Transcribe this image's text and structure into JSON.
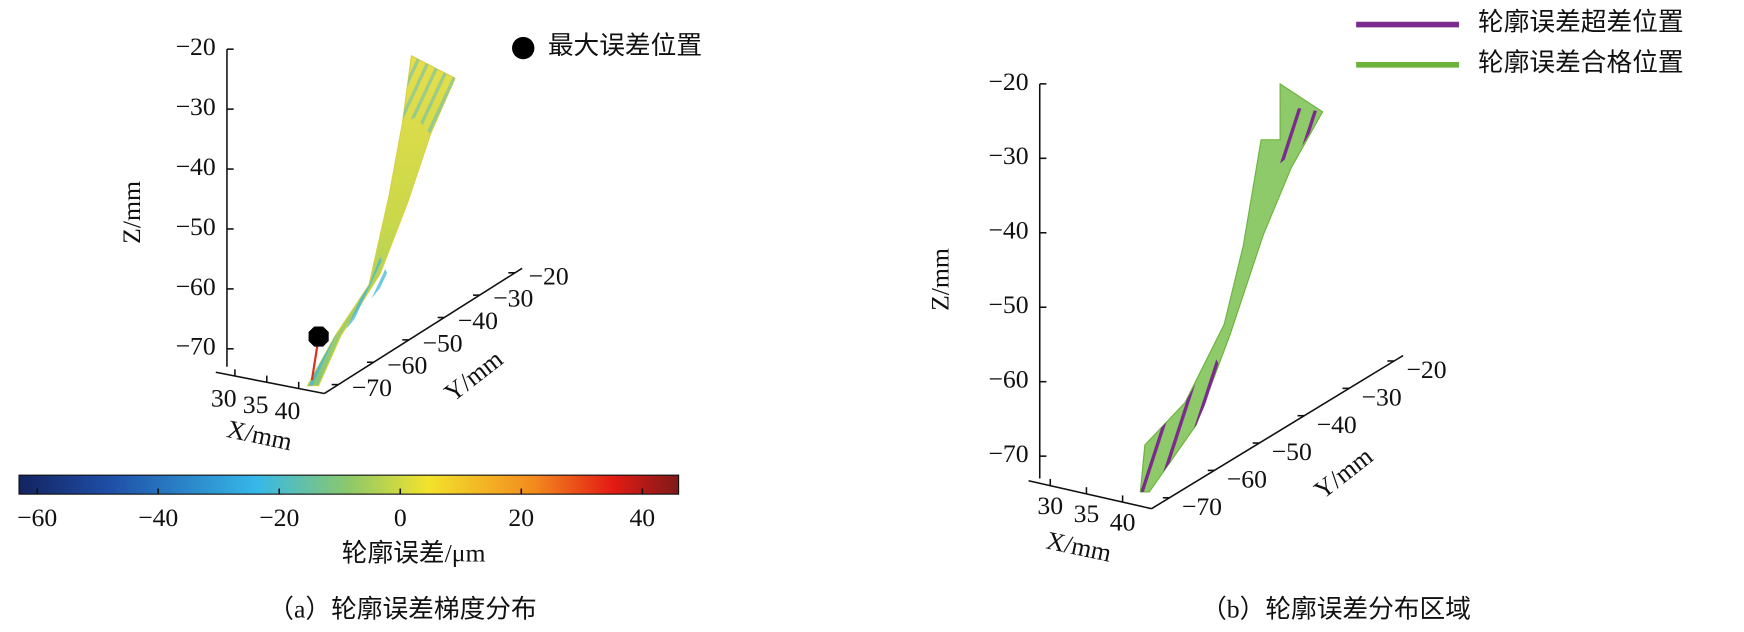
{
  "chart_data": [
    {
      "type": "surface3d",
      "zlabel": "Z/mm",
      "xlabel": "X/mm",
      "ylabel": "Y/mm",
      "zlim": [
        -73,
        -20
      ],
      "zticks": [
        {
          "value": -20,
          "label": "−20"
        },
        {
          "value": -30,
          "label": "−30"
        },
        {
          "value": -40,
          "label": "−40"
        },
        {
          "value": -50,
          "label": "−50"
        },
        {
          "value": -60,
          "label": "−60"
        },
        {
          "value": -70,
          "label": "−70"
        }
      ],
      "xlim": [
        27,
        44
      ],
      "xticks": [
        30,
        35,
        40
      ],
      "ylim": [
        -74,
        -18
      ],
      "yticks": [
        {
          "value": -20,
          "label": "−20"
        },
        {
          "value": -30,
          "label": "−30"
        },
        {
          "value": -40,
          "label": "−40"
        },
        {
          "value": -50,
          "label": "−50"
        },
        {
          "value": -60,
          "label": "−60"
        },
        {
          "value": -70,
          "label": "−70"
        }
      ],
      "markers": [
        {
          "name": "最大误差位置",
          "color": "#000000"
        }
      ],
      "colorbar": {
        "label": "轮廓误差/μm",
        "clim": [
          -63,
          46
        ],
        "ticks": [
          {
            "value": -60,
            "label": "−60"
          },
          {
            "value": -40,
            "label": "−40"
          },
          {
            "value": -20,
            "label": "−20"
          },
          0,
          20,
          40
        ]
      },
      "caption": "（a）轮廓误差梯度分布"
    },
    {
      "type": "surface3d",
      "zlabel": "Z/mm",
      "xlabel": "X/mm",
      "ylabel": "Y/mm",
      "zlim": [
        -73,
        -20
      ],
      "zticks": [
        {
          "value": -20,
          "label": "−20"
        },
        {
          "value": -30,
          "label": "−30"
        },
        {
          "value": -40,
          "label": "−40"
        },
        {
          "value": -50,
          "label": "−50"
        },
        {
          "value": -60,
          "label": "−60"
        },
        {
          "value": -70,
          "label": "−70"
        }
      ],
      "xlim": [
        27,
        44
      ],
      "xticks": [
        30,
        35,
        40
      ],
      "ylim": [
        -74,
        -18
      ],
      "yticks": [
        {
          "value": -20,
          "label": "−20"
        },
        {
          "value": -30,
          "label": "−30"
        },
        {
          "value": -40,
          "label": "−40"
        },
        {
          "value": -50,
          "label": "−50"
        },
        {
          "value": -60,
          "label": "−60"
        },
        {
          "value": -70,
          "label": "−70"
        }
      ],
      "series": [
        {
          "name": "轮廓误差超差位置",
          "color": "#7b2a8e"
        },
        {
          "name": "轮廓误差合格位置",
          "color": "#6cb33c"
        }
      ],
      "caption": "（b）轮廓误差分布区域"
    }
  ]
}
